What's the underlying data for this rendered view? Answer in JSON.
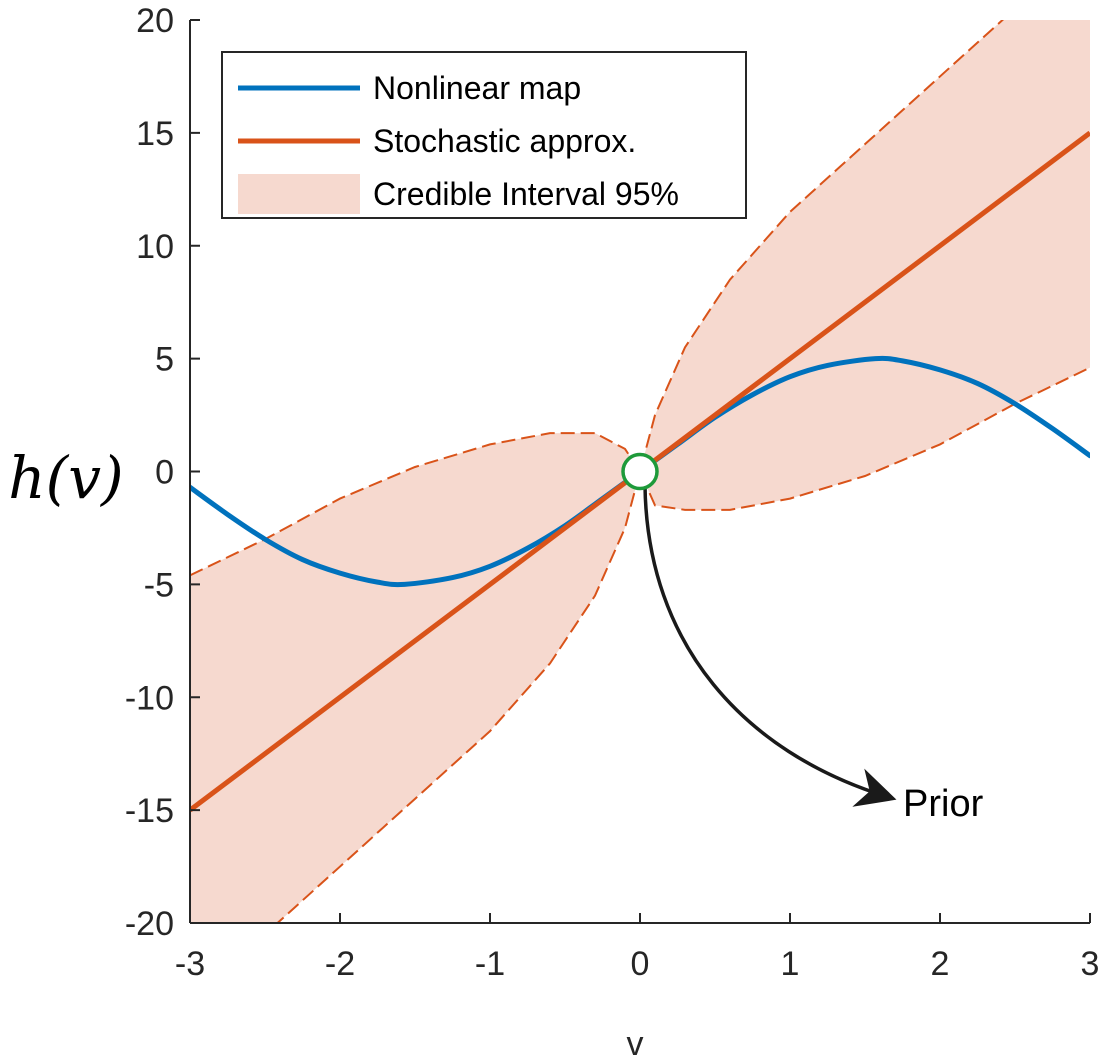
{
  "chart_data": {
    "type": "line",
    "title": "",
    "xlabel": "v",
    "ylabel": "h(v)",
    "xlim": [
      -3,
      3
    ],
    "ylim": [
      -20,
      20
    ],
    "xticks": [
      -3,
      -2,
      -1,
      0,
      1,
      2,
      3
    ],
    "yticks": [
      -20,
      -15,
      -10,
      -5,
      0,
      5,
      10,
      15,
      20
    ],
    "xtick_labels": [
      "-3",
      "-2",
      "-1",
      "0",
      "1",
      "2",
      "3"
    ],
    "ytick_labels": [
      "-20",
      "-15",
      "-10",
      "-5",
      "0",
      "5",
      "10",
      "15",
      "20"
    ],
    "grid": false,
    "legend_position": "top-left",
    "series": [
      {
        "name": "Nonlinear map",
        "type": "line",
        "color": "#0072BD",
        "x": [
          -3,
          -2.75,
          -2.5,
          -2.25,
          -2,
          -1.75,
          -1.57,
          -1.25,
          -1,
          -0.75,
          -0.5,
          -0.25,
          0,
          0.25,
          0.5,
          0.75,
          1,
          1.25,
          1.57,
          1.75,
          2,
          2.25,
          2.5,
          2.75,
          3
        ],
        "y": [
          -0.7,
          -1.9,
          -3.0,
          -3.9,
          -4.5,
          -4.9,
          -5.0,
          -4.7,
          -4.2,
          -3.4,
          -2.4,
          -1.2,
          0,
          1.2,
          2.4,
          3.4,
          4.2,
          4.7,
          5.0,
          4.9,
          4.5,
          3.9,
          3.0,
          1.9,
          0.7
        ]
      },
      {
        "name": "Stochastic approx.",
        "type": "line",
        "color": "#D95319",
        "x": [
          -3,
          3
        ],
        "y": [
          -15,
          15
        ]
      },
      {
        "name": "Credible Interval 95%",
        "type": "area",
        "color": "#F6D9CF",
        "edge_color": "#D95319",
        "x": [
          -3,
          -2.5,
          -2,
          -1.5,
          -1,
          -0.6,
          -0.3,
          -0.1,
          0,
          0.1,
          0.3,
          0.6,
          1,
          1.5,
          2,
          2.5,
          3
        ],
        "upper": [
          -4.6,
          -3.0,
          -1.2,
          0.2,
          1.2,
          1.7,
          1.7,
          1.0,
          0,
          2.5,
          5.5,
          8.5,
          11.5,
          14.5,
          17.5,
          20.5,
          24
        ],
        "lower": [
          -24,
          -20.5,
          -17.5,
          -14.5,
          -11.5,
          -8.5,
          -5.5,
          -2.5,
          0,
          -1.5,
          -1.7,
          -1.7,
          -1.2,
          -0.2,
          1.2,
          3.0,
          4.6
        ]
      }
    ],
    "annotations": [
      {
        "text": "Prior",
        "marker": "open-circle",
        "marker_color": "#1E9A3A",
        "point": [
          0,
          0
        ],
        "arrow_to": [
          1.7,
          -14.2
        ]
      }
    ]
  },
  "legend": {
    "items": [
      {
        "label": "Nonlinear map",
        "color": "#0072BD",
        "kind": "line"
      },
      {
        "label": "Stochastic approx.",
        "color": "#D95319",
        "kind": "line"
      },
      {
        "label": "Credible Interval 95%",
        "color": "#F6D9CF",
        "kind": "patch"
      }
    ]
  },
  "colors": {
    "axis": "#262626",
    "arrow": "#1a1a1a"
  }
}
